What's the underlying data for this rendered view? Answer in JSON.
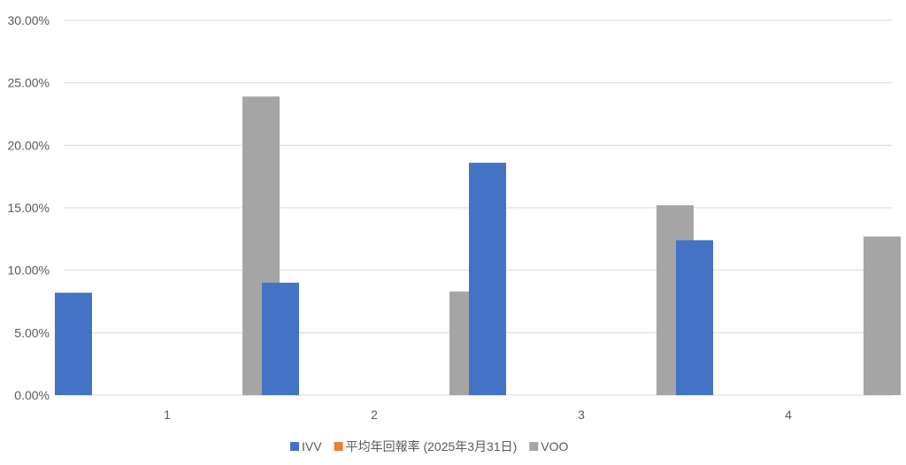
{
  "chart_data": {
    "type": "bar",
    "title": "",
    "xlabel": "",
    "ylabel": "",
    "categories": [
      "1",
      "2",
      "3",
      "4"
    ],
    "ylim": [
      0,
      30
    ],
    "yticks": [
      "0.00%",
      "5.00%",
      "10.00%",
      "15.00%",
      "20.00%",
      "25.00%",
      "30.00%"
    ],
    "grid": true,
    "legend_position": "bottom",
    "series": [
      {
        "name": "IVV",
        "color": "#4472C4",
        "values": [
          8.2,
          9.0,
          18.6,
          12.4
        ]
      },
      {
        "name": "平均年回報率 (2025年3月31日)",
        "color": "#ED7D31",
        "values": [
          0,
          0,
          0,
          0
        ]
      },
      {
        "name": "VOO",
        "color": "#A5A5A5",
        "values": [
          23.9,
          8.3,
          15.2,
          12.7
        ]
      }
    ]
  }
}
